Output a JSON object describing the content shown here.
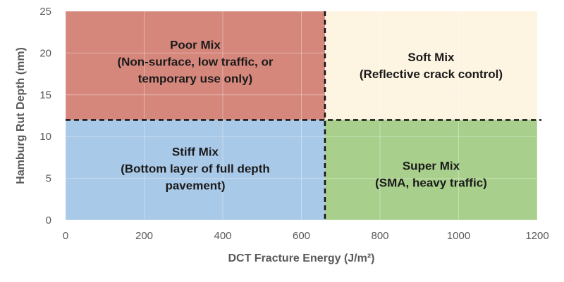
{
  "chart_data": {
    "type": "area",
    "title": "",
    "xlabel": "DCT Fracture Energy (J/m²)",
    "ylabel": "Hamburg Rut Depth (mm)",
    "xlim": [
      0,
      1200
    ],
    "ylim": [
      0,
      25
    ],
    "xticks": [
      0,
      200,
      400,
      600,
      800,
      1000,
      1200
    ],
    "yticks": [
      0,
      5,
      10,
      15,
      20,
      25
    ],
    "grid": true,
    "legend": "none",
    "thresholds": {
      "x": 660,
      "y": 12
    },
    "zones": [
      {
        "id": "poor",
        "x": [
          0,
          660
        ],
        "y": [
          12,
          25
        ],
        "color": "#d6877c",
        "label_lines": [
          "Poor Mix",
          "(Non-surface, low traffic, or",
          "temporary use only)"
        ],
        "label_center": [
          330,
          19
        ]
      },
      {
        "id": "soft",
        "x": [
          660,
          1200
        ],
        "y": [
          12,
          25
        ],
        "color": "#fdf4e1",
        "label_lines": [
          "Soft Mix",
          "(Reflective crack control)"
        ],
        "label_center": [
          930,
          18.5
        ]
      },
      {
        "id": "stiff",
        "x": [
          0,
          660
        ],
        "y": [
          0,
          12
        ],
        "color": "#a9c9e8",
        "label_lines": [
          "Stiff Mix",
          "(Bottom layer of full depth",
          "pavement)"
        ],
        "label_center": [
          330,
          6.2
        ]
      },
      {
        "id": "super",
        "x": [
          660,
          1200
        ],
        "y": [
          0,
          12
        ],
        "color": "#a8cf8c",
        "label_lines": [
          "Super Mix",
          "(SMA, heavy traffic)"
        ],
        "label_center": [
          930,
          5.5
        ]
      }
    ]
  }
}
